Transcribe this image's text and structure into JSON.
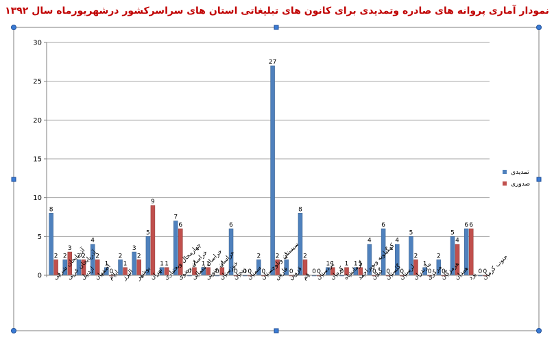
{
  "chart_data": {
    "type": "bar",
    "title": "نمودار آماری پروانه های صادره وتمدیدی برای کانون های تبلیغاتی استان های سراسرکشور درشهریورماه سال ۱۳۹۲",
    "xlabel": "",
    "ylabel": "",
    "ylim": [
      0,
      30
    ],
    "yticks": [
      0,
      5,
      10,
      15,
      20,
      25,
      30
    ],
    "grid": true,
    "legend_position": "right",
    "categories": [
      "آذربایجان شرقی",
      "آذربایجان غربی",
      "اردبیل",
      "اصفهان",
      "ایلام",
      "البرز",
      "بوشهر",
      "تهران",
      "چهارمحال وبختیاری",
      "خراسان رضوی",
      "خراسان شمالی",
      "خراسان جنوبی",
      "خوزستان",
      "زنجان",
      "سمنان",
      "سیستان وبلوچستان",
      "فارس",
      "قزوین",
      "قم",
      "کردستان",
      "کرمان",
      "کرمانشاه",
      "کهگیلویه وبویراحمد",
      "گیلان",
      "گلستان",
      "لرستان",
      "مازندران",
      "مرکزی",
      "هرمزگان",
      "همدان",
      "یزد",
      "جنوب کرمان"
    ],
    "series": [
      {
        "name": "تمدیدی",
        "color": "#4f81bd",
        "values": [
          8,
          2,
          2,
          4,
          1,
          2,
          3,
          5,
          1,
          7,
          0,
          1,
          0,
          6,
          0,
          2,
          27,
          2,
          8,
          0,
          1,
          0,
          1,
          4,
          6,
          4,
          5,
          1,
          2,
          5,
          6,
          0
        ]
      },
      {
        "name": "صدوری",
        "color": "#c0504d",
        "values": [
          2,
          3,
          2,
          2,
          0,
          1,
          2,
          9,
          1,
          6,
          1,
          1,
          1,
          0,
          0,
          0,
          2,
          0,
          2,
          0,
          1,
          1,
          1,
          0,
          0,
          0,
          2,
          0,
          0,
          4,
          6,
          0
        ]
      }
    ]
  }
}
